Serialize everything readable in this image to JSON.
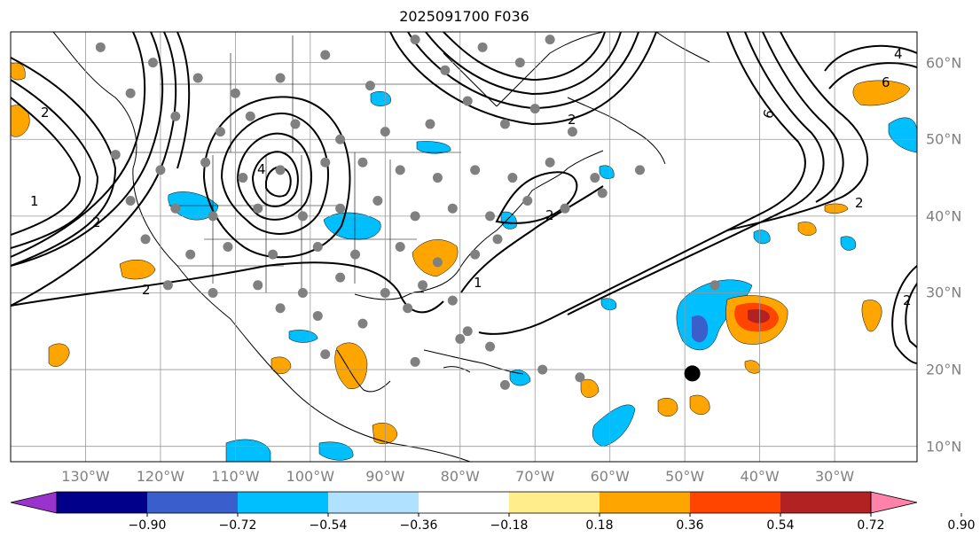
{
  "title": "2025091700 F036",
  "longitude_labels": [
    {
      "lon": -130,
      "text": "130°W"
    },
    {
      "lon": -120,
      "text": "120°W"
    },
    {
      "lon": -110,
      "text": "110°W"
    },
    {
      "lon": -100,
      "text": "100°W"
    },
    {
      "lon": -90,
      "text": "90°W"
    },
    {
      "lon": -80,
      "text": "80°W"
    },
    {
      "lon": -70,
      "text": "70°W"
    },
    {
      "lon": -60,
      "text": "60°W"
    },
    {
      "lon": -50,
      "text": "50°W"
    },
    {
      "lon": -40,
      "text": "40°W"
    },
    {
      "lon": -30,
      "text": "30°W"
    }
  ],
  "latitude_labels": [
    {
      "lat": 60,
      "text": "60°N"
    },
    {
      "lat": 50,
      "text": "50°N"
    },
    {
      "lat": 40,
      "text": "40°N"
    },
    {
      "lat": 30,
      "text": "30°N"
    },
    {
      "lat": 20,
      "text": "20°N"
    },
    {
      "lat": 10,
      "text": "10°N"
    }
  ],
  "map_extent": {
    "lon_min": -140,
    "lon_max": -19,
    "lat_min": 8,
    "lat_max": 64
  },
  "colorbar": {
    "ticks": [
      "−0.90",
      "−0.72",
      "−0.54",
      "−0.36",
      "−0.18",
      "0.18",
      "0.36",
      "0.54",
      "0.72",
      "0.90"
    ],
    "colors": [
      "#9a32cd",
      "#00008b",
      "#3a5fcd",
      "#00bfff",
      "#b0e2ff",
      "#ffffff",
      "#ffec8b",
      "#ffa500",
      "#ff4500",
      "#b22222",
      "#ff82ab"
    ]
  },
  "contour_labels": [
    "4",
    "6",
    "6",
    "2",
    "2",
    "2",
    "1",
    "2",
    "4",
    "2",
    "2",
    "1",
    "2"
  ],
  "storm_marker": {
    "lon": -49,
    "lat": 19.5
  },
  "station_points": [
    [
      -128,
      62
    ],
    [
      -121,
      60
    ],
    [
      -115,
      58
    ],
    [
      -110,
      56
    ],
    [
      -104,
      58
    ],
    [
      -98,
      61
    ],
    [
      -92,
      57
    ],
    [
      -86,
      63
    ],
    [
      -82,
      59
    ],
    [
      -77,
      62
    ],
    [
      -72,
      60
    ],
    [
      -68,
      63
    ],
    [
      -124,
      56
    ],
    [
      -118,
      53
    ],
    [
      -112,
      51
    ],
    [
      -108,
      53
    ],
    [
      -102,
      52
    ],
    [
      -96,
      50
    ],
    [
      -90,
      51
    ],
    [
      -84,
      52
    ],
    [
      -79,
      55
    ],
    [
      -74,
      52
    ],
    [
      -70,
      54
    ],
    [
      -65,
      51
    ],
    [
      -126,
      48
    ],
    [
      -120,
      46
    ],
    [
      -114,
      47
    ],
    [
      -109,
      45
    ],
    [
      -104,
      46
    ],
    [
      -98,
      47
    ],
    [
      -93,
      47
    ],
    [
      -88,
      46
    ],
    [
      -83,
      45
    ],
    [
      -78,
      46
    ],
    [
      -73,
      45
    ],
    [
      -68,
      47
    ],
    [
      -62,
      45
    ],
    [
      -124,
      42
    ],
    [
      -118,
      41
    ],
    [
      -113,
      40
    ],
    [
      -107,
      41
    ],
    [
      -101,
      40
    ],
    [
      -96,
      41
    ],
    [
      -91,
      42
    ],
    [
      -86,
      40
    ],
    [
      -81,
      41
    ],
    [
      -76,
      40
    ],
    [
      -71,
      42
    ],
    [
      -66,
      41
    ],
    [
      -61,
      43
    ],
    [
      -56,
      46
    ],
    [
      -122,
      37
    ],
    [
      -116,
      35
    ],
    [
      -111,
      36
    ],
    [
      -105,
      35
    ],
    [
      -99,
      36
    ],
    [
      -94,
      35
    ],
    [
      -88,
      36
    ],
    [
      -83,
      34
    ],
    [
      -78,
      35
    ],
    [
      -75,
      37
    ],
    [
      -119,
      31
    ],
    [
      -113,
      30
    ],
    [
      -107,
      31
    ],
    [
      -101,
      30
    ],
    [
      -96,
      32
    ],
    [
      -90,
      30
    ],
    [
      -85,
      31
    ],
    [
      -81,
      29
    ],
    [
      -104,
      28
    ],
    [
      -99,
      27
    ],
    [
      -93,
      26
    ],
    [
      -87,
      28
    ],
    [
      -80,
      24
    ],
    [
      -76,
      23
    ],
    [
      -98,
      22
    ],
    [
      -86,
      21
    ],
    [
      -74,
      18
    ],
    [
      -64,
      19
    ],
    [
      -69,
      20
    ],
    [
      -46,
      31
    ],
    [
      -79,
      25
    ]
  ]
}
